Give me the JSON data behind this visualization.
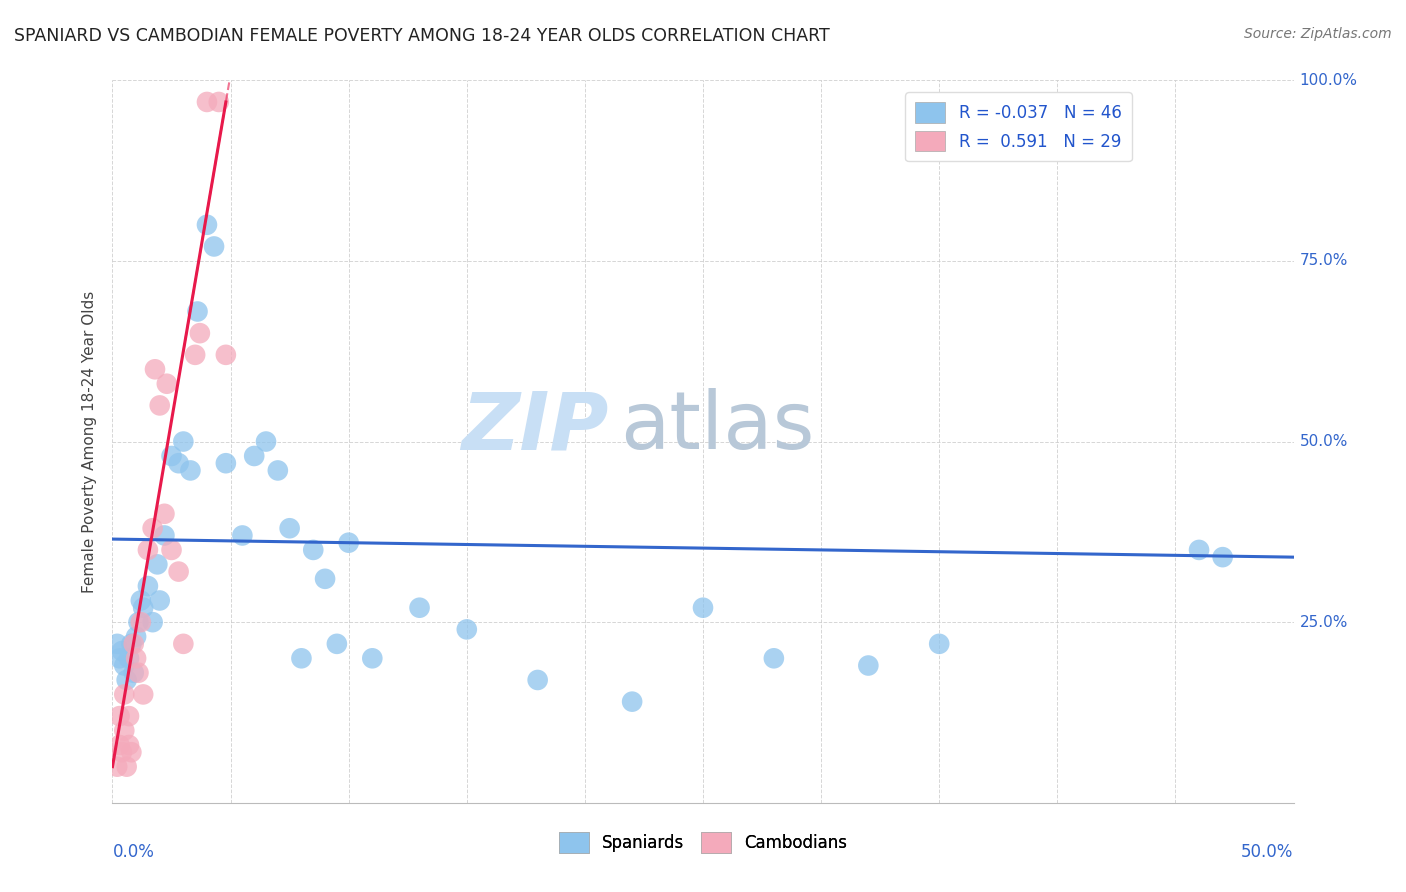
{
  "title": "SPANIARD VS CAMBODIAN FEMALE POVERTY AMONG 18-24 YEAR OLDS CORRELATION CHART",
  "source": "Source: ZipAtlas.com",
  "ylabel": "Female Poverty Among 18-24 Year Olds",
  "ylabel_right_ticks": [
    "100.0%",
    "75.0%",
    "50.0%",
    "25.0%"
  ],
  "ylabel_right_values": [
    1.0,
    0.75,
    0.5,
    0.25
  ],
  "xmin": 0.0,
  "xmax": 0.5,
  "ymin": 0.0,
  "ymax": 1.0,
  "spaniards_color": "#8EC4ED",
  "cambodians_color": "#F4AABB",
  "trendline_spaniards_color": "#3366CC",
  "trendline_cambodians_color": "#E8194B",
  "R_spaniards": -0.037,
  "N_spaniards": 46,
  "R_cambodians": 0.591,
  "N_cambodians": 29,
  "watermark_zip": "ZIP",
  "watermark_atlas": "atlas",
  "spaniards_x": [
    0.002,
    0.003,
    0.004,
    0.005,
    0.006,
    0.007,
    0.008,
    0.009,
    0.01,
    0.011,
    0.012,
    0.013,
    0.015,
    0.017,
    0.019,
    0.02,
    0.022,
    0.025,
    0.028,
    0.03,
    0.033,
    0.036,
    0.04,
    0.043,
    0.048,
    0.055,
    0.06,
    0.065,
    0.07,
    0.075,
    0.08,
    0.085,
    0.09,
    0.095,
    0.1,
    0.11,
    0.13,
    0.15,
    0.18,
    0.22,
    0.25,
    0.28,
    0.32,
    0.35,
    0.46,
    0.47
  ],
  "spaniards_y": [
    0.22,
    0.2,
    0.21,
    0.19,
    0.17,
    0.2,
    0.22,
    0.18,
    0.23,
    0.25,
    0.28,
    0.27,
    0.3,
    0.25,
    0.33,
    0.28,
    0.37,
    0.48,
    0.47,
    0.5,
    0.46,
    0.68,
    0.8,
    0.77,
    0.47,
    0.37,
    0.48,
    0.5,
    0.46,
    0.38,
    0.2,
    0.35,
    0.31,
    0.22,
    0.36,
    0.2,
    0.27,
    0.24,
    0.17,
    0.14,
    0.27,
    0.2,
    0.19,
    0.22,
    0.35,
    0.34
  ],
  "cambodians_x": [
    0.002,
    0.003,
    0.003,
    0.004,
    0.005,
    0.005,
    0.006,
    0.007,
    0.007,
    0.008,
    0.009,
    0.01,
    0.011,
    0.012,
    0.013,
    0.015,
    0.017,
    0.018,
    0.02,
    0.022,
    0.023,
    0.025,
    0.028,
    0.03,
    0.035,
    0.037,
    0.04,
    0.045,
    0.048
  ],
  "cambodians_y": [
    0.05,
    0.08,
    0.12,
    0.07,
    0.1,
    0.15,
    0.05,
    0.08,
    0.12,
    0.07,
    0.22,
    0.2,
    0.18,
    0.25,
    0.15,
    0.35,
    0.38,
    0.6,
    0.55,
    0.4,
    0.58,
    0.35,
    0.32,
    0.22,
    0.62,
    0.65,
    0.97,
    0.97,
    0.62
  ],
  "trendline_sp_x0": 0.0,
  "trendline_sp_y0": 0.365,
  "trendline_sp_x1": 0.5,
  "trendline_sp_y1": 0.34,
  "trendline_cam_x0": 0.0,
  "trendline_cam_y0": 0.05,
  "trendline_cam_x1": 0.048,
  "trendline_cam_y1": 0.97
}
